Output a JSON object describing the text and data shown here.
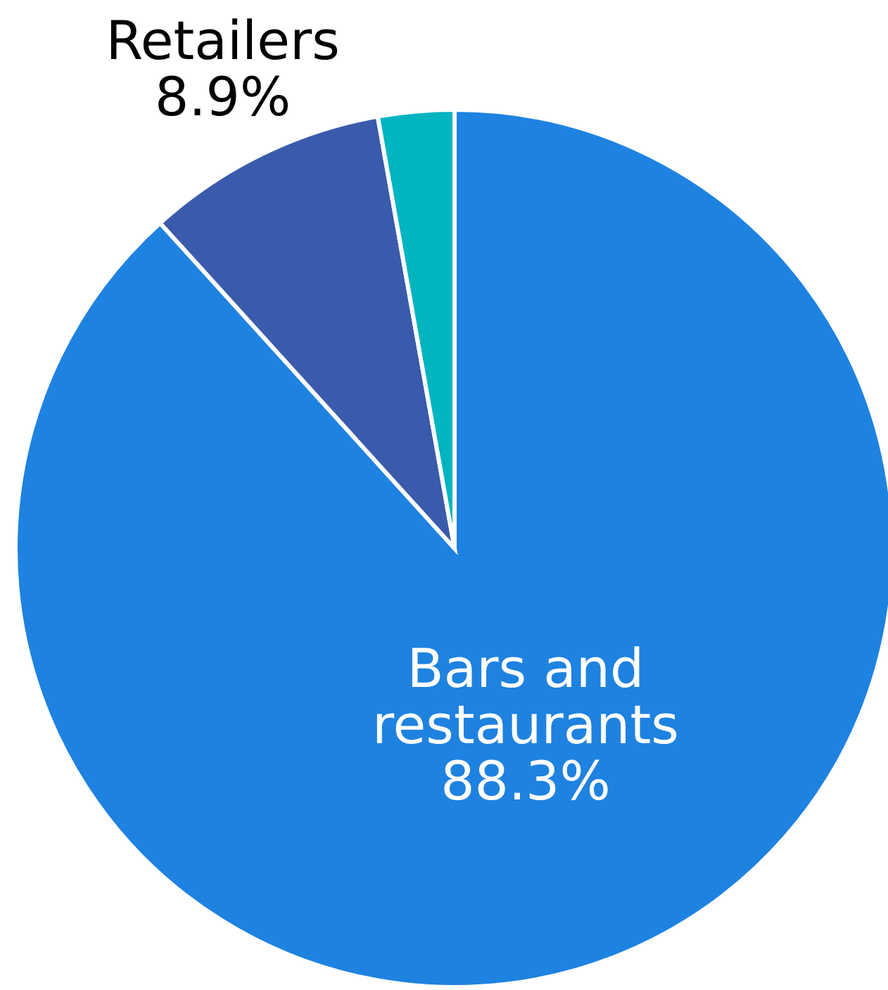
{
  "chart_data": {
    "type": "pie",
    "categories": [
      "Bars and restaurants",
      "Retailers",
      null
    ],
    "values": [
      88.3,
      8.9,
      2.8
    ],
    "value_labels": [
      "88.3%",
      "8.9%",
      null
    ],
    "colors": [
      "#1e82e0",
      "#3a5bab",
      "#00b4c0"
    ]
  }
}
